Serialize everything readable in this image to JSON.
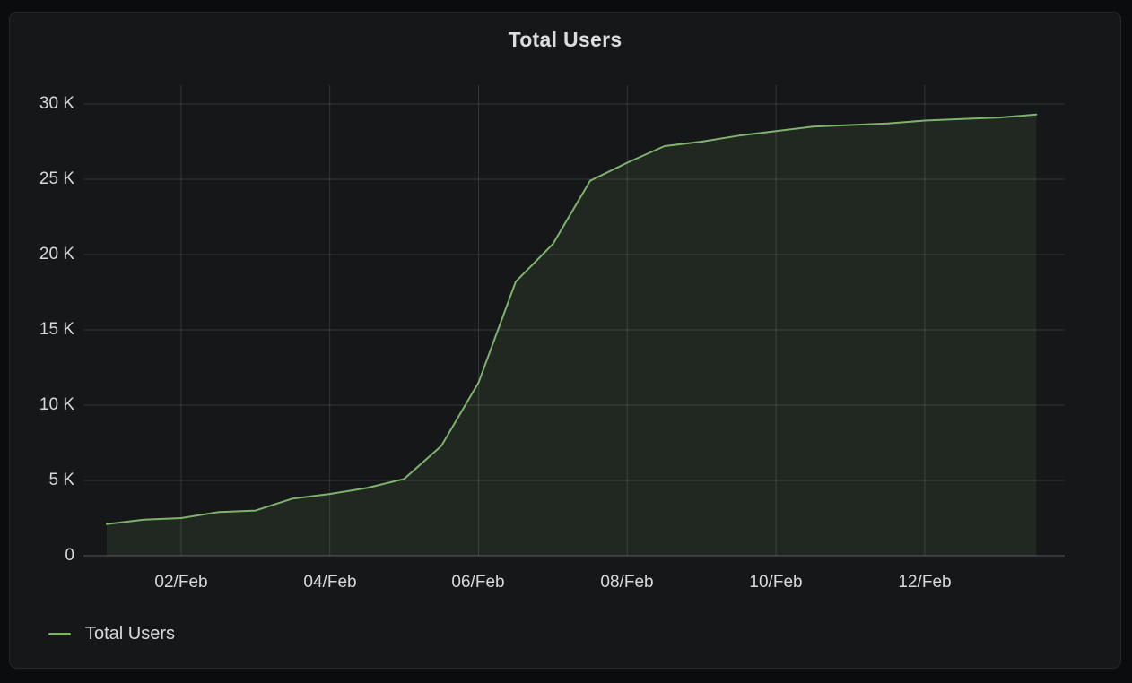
{
  "panel": {
    "title": "Total Users"
  },
  "legend": {
    "position": "bottom-left",
    "items": [
      {
        "label": "Total Users",
        "color": "#7eb26d"
      }
    ]
  },
  "chart_data": {
    "type": "area",
    "title": "Total Users",
    "series_name": "Total Users",
    "x_unit": "datetime",
    "x_start": "01/Feb 00:00",
    "x_end": "13/Feb 12:00",
    "x_interval_hours": 12,
    "x_days_from_feb01": [
      0,
      0.5,
      1,
      1.5,
      2,
      2.5,
      3,
      3.5,
      4,
      4.5,
      5,
      5.5,
      6,
      6.5,
      7,
      7.5,
      8,
      8.5,
      9,
      9.5,
      10,
      10.5,
      11,
      11.5,
      12,
      12.5
    ],
    "values": [
      2100,
      2400,
      2500,
      2900,
      3000,
      3800,
      4100,
      4500,
      5100,
      7300,
      11500,
      18200,
      20700,
      24900,
      26100,
      27200,
      27500,
      27900,
      28200,
      28500,
      28600,
      28700,
      28900,
      29000,
      29100,
      29300
    ],
    "x_tick_labels": [
      "02/Feb",
      "04/Feb",
      "06/Feb",
      "08/Feb",
      "10/Feb",
      "12/Feb"
    ],
    "x_tick_days": [
      1,
      3,
      5,
      7,
      9,
      11
    ],
    "y_tick_labels": [
      "30 K",
      "25 K",
      "20 K",
      "15 K",
      "10 K",
      "5 K",
      "0"
    ],
    "y_tick_values": [
      30000,
      25000,
      20000,
      15000,
      10000,
      5000,
      0
    ],
    "ylim": [
      0,
      31250
    ],
    "x_range_days": [
      -0.3,
      12.9
    ],
    "grid": true,
    "legend_position": "bottom-left",
    "line_color": "#7eb26d",
    "fill_opacity": 0.11
  },
  "colors": {
    "page_background": "#0b0c0e",
    "panel_background": "#161719",
    "panel_border": "#26282e",
    "grid": "rgba(255,255,255,0.13)",
    "axis_line": "rgba(255,255,255,0.28)",
    "text": "#d8d9da",
    "line": "#7eb26d",
    "fill": "rgba(126,178,109,0.11)"
  }
}
